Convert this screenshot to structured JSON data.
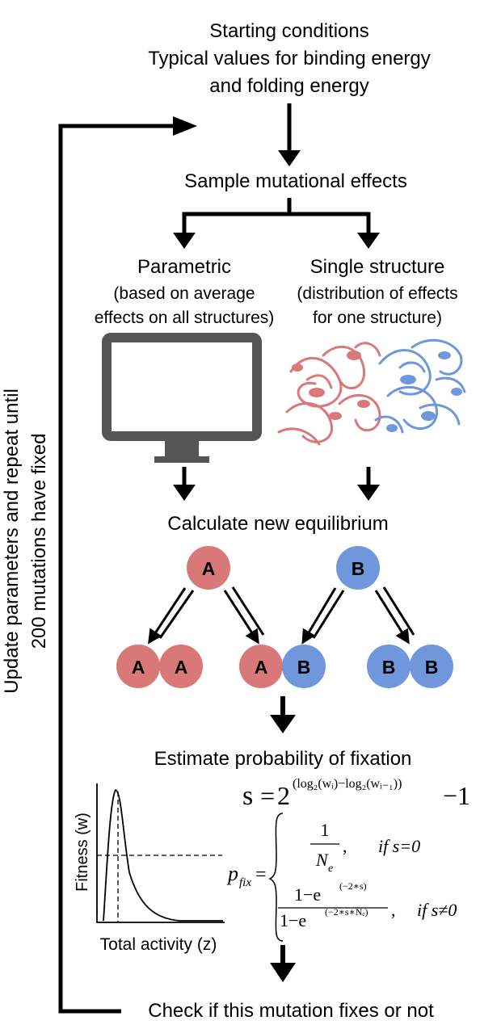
{
  "start": {
    "line1": "Starting conditions",
    "line2": "Typical values for binding energy",
    "line3": "and folding energy"
  },
  "sample": "Sample mutational effects",
  "parametric": {
    "title": "Parametric",
    "desc1": "(based on average",
    "desc2": "effects on all structures)"
  },
  "single": {
    "title": "Single structure",
    "desc1": "(distribution of effects",
    "desc2": "for one structure)"
  },
  "equilibrium": "Calculate new equilibrium",
  "species": {
    "monomer_a": "A",
    "monomer_b": "B",
    "dimer_aa": [
      "A",
      "A"
    ],
    "dimer_ab": [
      "A",
      "B"
    ],
    "dimer_bb": [
      "B",
      "B"
    ]
  },
  "fixation": "Estimate probability of fixation",
  "graph": {
    "ylabel": "Fitness (w)",
    "xlabel": "Total activity (z)"
  },
  "formula": {
    "s": "s",
    "eq": "=",
    "two": "2",
    "exponent": "(log₂(wᵢ)−log₂(wᵢ₋₁))",
    "minus_one": "−1",
    "p": "p",
    "p_sub": "fix",
    "one": "1",
    "ne": "N",
    "ne_sub": "e",
    "cond1": "if s=0",
    "num2": "1−e",
    "num2_exp": "(−2∗s)",
    "den2": "1−e",
    "den2_exp": "(−2∗s∗Nₑ)",
    "cond2": "if s≠0",
    "comma": ","
  },
  "check": "Check if this mutation fixes or not",
  "loop_label": {
    "line1": "Update parameters and repeat until",
    "line2": "200 mutations have fixed"
  },
  "colors": {
    "protein_a": "#d97878",
    "protein_b": "#7096dc",
    "monitor": "#555555"
  }
}
